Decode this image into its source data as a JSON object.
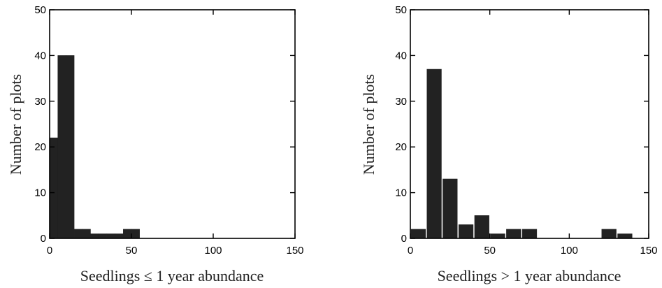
{
  "chart_data": [
    {
      "type": "bar",
      "histogram": true,
      "xlabel": "Seedlings ≤ 1 year abundance",
      "ylabel": "Number of plots",
      "xlim": [
        0,
        150
      ],
      "ylim": [
        0,
        50
      ],
      "xticks": [
        "0",
        "50",
        "100",
        "150"
      ],
      "yticks": [
        "0",
        "10",
        "20",
        "30",
        "40",
        "50"
      ],
      "bin_width": 5,
      "bins": [
        {
          "x": 0,
          "value": 22
        },
        {
          "x": 5,
          "value": 40
        },
        {
          "x": 10,
          "value": 40
        },
        {
          "x": 15,
          "value": 2
        },
        {
          "x": 20,
          "value": 2
        },
        {
          "x": 25,
          "value": 1
        },
        {
          "x": 30,
          "value": 1
        },
        {
          "x": 35,
          "value": 1
        },
        {
          "x": 40,
          "value": 1
        },
        {
          "x": 45,
          "value": 2
        },
        {
          "x": 50,
          "value": 2
        }
      ],
      "grid": false
    },
    {
      "type": "bar",
      "histogram": true,
      "xlabel": "Seedlings > 1 year abundance",
      "ylabel": "Number of plots",
      "xlim": [
        0,
        150
      ],
      "ylim": [
        0,
        50
      ],
      "xticks": [
        "0",
        "50",
        "100",
        "150"
      ],
      "yticks": [
        "0",
        "10",
        "20",
        "30",
        "40",
        "50"
      ],
      "bin_width": 10,
      "bins": [
        {
          "x": 0,
          "value": 2
        },
        {
          "x": 10,
          "value": 37
        },
        {
          "x": 20,
          "value": 13
        },
        {
          "x": 30,
          "value": 3
        },
        {
          "x": 40,
          "value": 5
        },
        {
          "x": 50,
          "value": 1
        },
        {
          "x": 60,
          "value": 2
        },
        {
          "x": 70,
          "value": 2
        },
        {
          "x": 80,
          "value": 0
        },
        {
          "x": 90,
          "value": 0
        },
        {
          "x": 100,
          "value": 0
        },
        {
          "x": 110,
          "value": 0
        },
        {
          "x": 120,
          "value": 2
        },
        {
          "x": 130,
          "value": 1
        },
        {
          "x": 140,
          "value": 0
        }
      ],
      "grid": false
    }
  ]
}
